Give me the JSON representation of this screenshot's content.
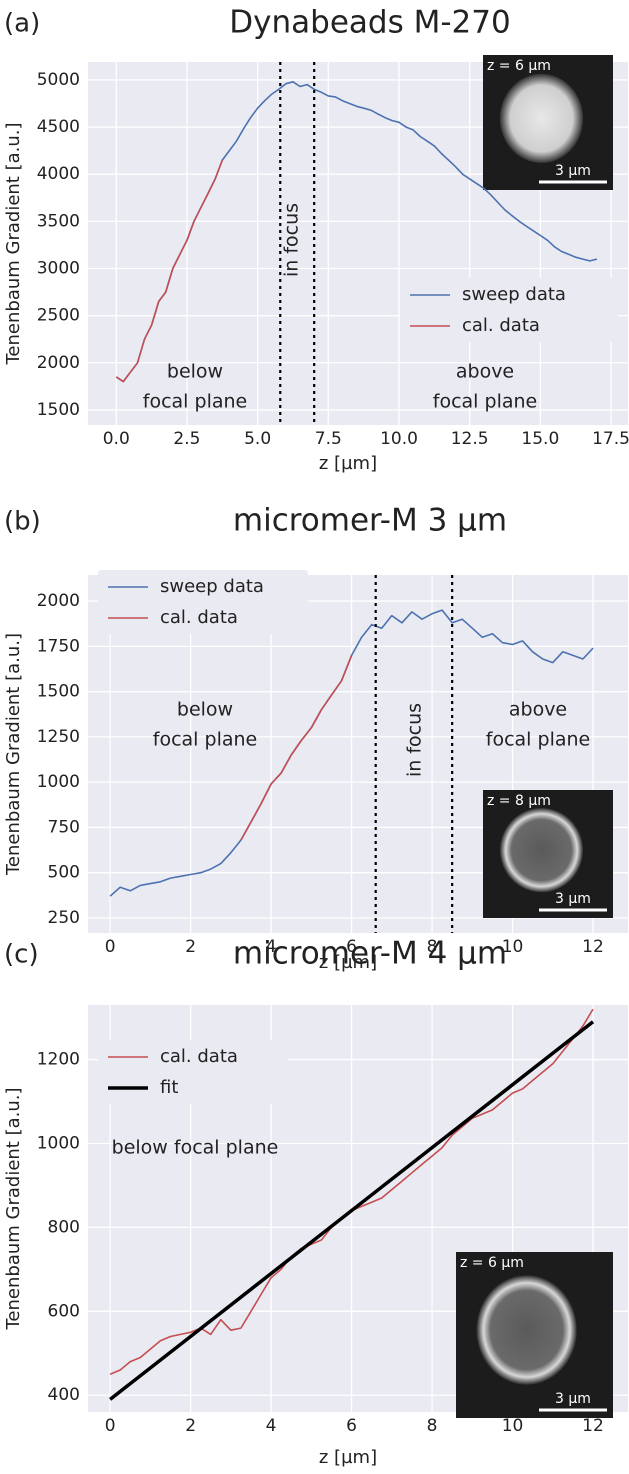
{
  "chart_data": [
    {
      "type": "line",
      "panel_label": "(a)",
      "title": "Dynabeads M-270",
      "xlabel": "z [µm]",
      "ylabel": "Tenenbaum Gradient [a.u.]",
      "xlim": [
        -1,
        18.1
      ],
      "ylim": [
        1340,
        5190
      ],
      "xticks": [
        {
          "value": 0,
          "label": "0.0"
        },
        2.5,
        {
          "value": 5,
          "label": "5.0"
        },
        7.5,
        {
          "value": 10,
          "label": "10.0"
        },
        12.5,
        {
          "value": 15,
          "label": "15.0"
        },
        17.5
      ],
      "yticks": [
        1500,
        2000,
        2500,
        3000,
        3500,
        4000,
        4500,
        5000
      ],
      "grid": true,
      "legend": "lower right",
      "vlines": [
        5.8,
        7.0
      ],
      "annotations": [
        {
          "text": [
            "below",
            "focal plane"
          ]
        },
        {
          "text": [
            "above",
            "focal plane"
          ]
        },
        {
          "text": [
            "in focus"
          ]
        }
      ],
      "inset": {
        "label": "z = 6 µm",
        "scale": "3 µm"
      },
      "series": [
        {
          "name": "sweep data",
          "color": "#4c72b0",
          "linewidth": 1.6,
          "x": [
            0,
            0.25,
            0.5,
            0.75,
            1,
            1.25,
            1.5,
            1.75,
            2,
            2.25,
            2.5,
            2.75,
            3,
            3.25,
            3.5,
            3.75,
            4,
            4.25,
            4.5,
            4.75,
            5,
            5.25,
            5.5,
            5.75,
            6,
            6.25,
            6.5,
            6.75,
            7,
            7.25,
            7.5,
            7.75,
            8,
            8.25,
            8.5,
            8.75,
            9,
            9.25,
            9.5,
            9.75,
            10,
            10.25,
            10.5,
            10.75,
            11,
            11.25,
            11.5,
            11.75,
            12,
            12.25,
            12.5,
            12.75,
            13,
            13.25,
            13.5,
            13.75,
            14,
            14.25,
            14.5,
            14.75,
            15,
            15.25,
            15.5,
            15.75,
            16,
            16.25,
            16.5,
            16.75,
            17
          ],
          "values": [
            1850,
            1800,
            1900,
            2000,
            2250,
            2400,
            2650,
            2750,
            3000,
            3150,
            3300,
            3500,
            3650,
            3800,
            3950,
            4150,
            4250,
            4350,
            4480,
            4600,
            4700,
            4780,
            4850,
            4900,
            4960,
            4980,
            4930,
            4950,
            4900,
            4870,
            4830,
            4820,
            4780,
            4750,
            4720,
            4700,
            4680,
            4640,
            4600,
            4570,
            4550,
            4500,
            4470,
            4400,
            4350,
            4300,
            4220,
            4150,
            4080,
            4000,
            3950,
            3900,
            3850,
            3780,
            3700,
            3620,
            3560,
            3500,
            3450,
            3400,
            3350,
            3300,
            3230,
            3180,
            3150,
            3120,
            3100,
            3080,
            3100
          ]
        },
        {
          "name": "cal. data",
          "color": "#c44e52",
          "linewidth": 1.6,
          "x": [
            0,
            0.25,
            0.5,
            0.75,
            1,
            1.25,
            1.5,
            1.75,
            2,
            2.25,
            2.5,
            2.75,
            3,
            3.25,
            3.5,
            3.75
          ],
          "values": [
            1850,
            1800,
            1900,
            2000,
            2250,
            2400,
            2650,
            2750,
            3000,
            3150,
            3300,
            3500,
            3650,
            3800,
            3950,
            4150
          ]
        }
      ]
    },
    {
      "type": "line",
      "panel_label": "(b)",
      "title": "micromer-M 3 µm",
      "xlabel": "z [µm]",
      "ylabel": "Tenenbaum Gradient [a.u.]",
      "xlim": [
        -0.55,
        12.87
      ],
      "ylim": [
        167,
        2144
      ],
      "xticks": [
        0,
        2,
        4,
        6,
        8,
        10,
        12
      ],
      "yticks": [
        250,
        500,
        750,
        1000,
        1250,
        1500,
        1750,
        2000
      ],
      "grid": true,
      "legend": "upper left",
      "vlines": [
        6.6,
        8.5
      ],
      "annotations": [
        {
          "text": [
            "below",
            "focal plane"
          ]
        },
        {
          "text": [
            "above",
            "focal plane"
          ]
        },
        {
          "text": [
            "in focus"
          ]
        }
      ],
      "inset": {
        "label": "z = 8 µm",
        "scale": "3 µm"
      },
      "series": [
        {
          "name": "sweep data",
          "color": "#4c72b0",
          "linewidth": 1.6,
          "x": [
            0,
            0.25,
            0.5,
            0.75,
            1,
            1.25,
            1.5,
            1.75,
            2,
            2.25,
            2.5,
            2.75,
            3,
            3.25,
            3.5,
            3.75,
            4,
            4.25,
            4.5,
            4.75,
            5,
            5.25,
            5.5,
            5.75,
            6,
            6.25,
            6.5,
            6.75,
            7,
            7.25,
            7.5,
            7.75,
            8,
            8.25,
            8.5,
            8.75,
            9,
            9.25,
            9.5,
            9.75,
            10,
            10.25,
            10.5,
            10.75,
            11,
            11.25,
            11.5,
            11.75,
            12
          ],
          "values": [
            370,
            420,
            400,
            430,
            440,
            450,
            470,
            480,
            490,
            500,
            520,
            550,
            610,
            680,
            780,
            880,
            990,
            1050,
            1150,
            1230,
            1300,
            1400,
            1480,
            1560,
            1700,
            1800,
            1870,
            1850,
            1920,
            1880,
            1940,
            1900,
            1930,
            1950,
            1880,
            1900,
            1850,
            1800,
            1820,
            1770,
            1760,
            1780,
            1720,
            1680,
            1660,
            1720,
            1700,
            1680,
            1740
          ]
        },
        {
          "name": "cal. data",
          "color": "#c44e52",
          "linewidth": 1.6,
          "x": [
            3.25,
            3.5,
            3.75,
            4,
            4.25,
            4.5,
            4.75,
            5,
            5.25,
            5.5,
            5.75,
            6
          ],
          "values": [
            680,
            780,
            880,
            990,
            1050,
            1150,
            1230,
            1300,
            1400,
            1480,
            1560,
            1700
          ]
        }
      ]
    },
    {
      "type": "line",
      "panel_label": "(c)",
      "title": "micromer-M 4 µm",
      "xlabel": "z [µm]",
      "ylabel": "Tenenbaum Gradient [a.u.]",
      "xlim": [
        -0.55,
        12.87
      ],
      "ylim": [
        360,
        1330
      ],
      "xticks": [
        0,
        2,
        4,
        6,
        8,
        10,
        12
      ],
      "yticks": [
        400,
        600,
        800,
        1000,
        1200
      ],
      "grid": true,
      "legend": "upper left",
      "vlines": [],
      "annotations": [
        {
          "text": [
            "below focal plane"
          ]
        }
      ],
      "inset": {
        "label": "z = 6 µm",
        "scale": "3 µm"
      },
      "series": [
        {
          "name": "cal. data",
          "color": "#c44e52",
          "linewidth": 1.6,
          "x": [
            0,
            0.25,
            0.5,
            0.75,
            1,
            1.25,
            1.5,
            1.75,
            2,
            2.25,
            2.5,
            2.75,
            3,
            3.25,
            3.5,
            3.75,
            4,
            4.25,
            4.5,
            4.75,
            5,
            5.25,
            5.5,
            5.75,
            6,
            6.25,
            6.5,
            6.75,
            7,
            7.25,
            7.5,
            7.75,
            8,
            8.25,
            8.5,
            8.75,
            9,
            9.25,
            9.5,
            9.75,
            10,
            10.25,
            10.5,
            10.75,
            11,
            11.25,
            11.5,
            11.75,
            12
          ],
          "values": [
            450,
            460,
            480,
            490,
            510,
            530,
            540,
            545,
            550,
            560,
            545,
            580,
            555,
            560,
            600,
            640,
            680,
            700,
            730,
            750,
            760,
            770,
            800,
            820,
            840,
            850,
            860,
            870,
            890,
            910,
            930,
            950,
            970,
            990,
            1020,
            1040,
            1060,
            1070,
            1080,
            1100,
            1120,
            1130,
            1150,
            1170,
            1190,
            1220,
            1250,
            1280,
            1320
          ]
        },
        {
          "name": "fit",
          "color": "#000000",
          "linewidth": 3.5,
          "x": [
            0,
            12
          ],
          "values": [
            390,
            1290
          ]
        }
      ]
    }
  ]
}
